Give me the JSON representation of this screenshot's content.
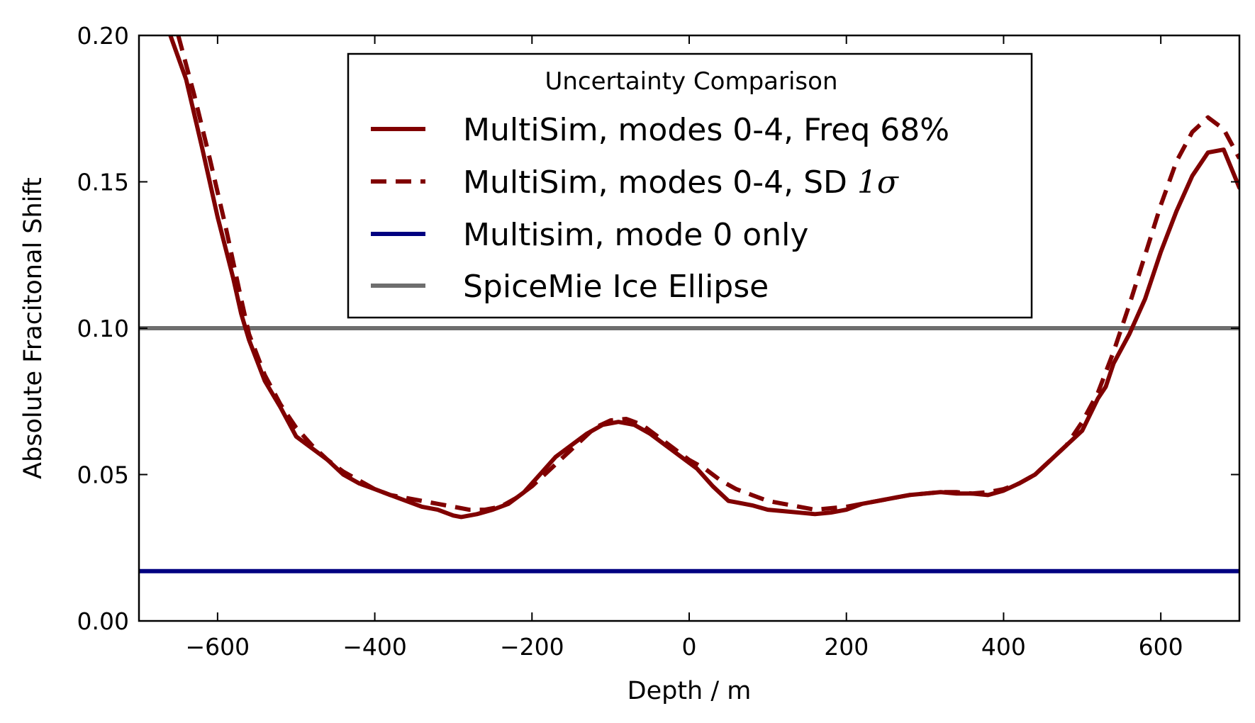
{
  "chart_data": {
    "type": "line",
    "title": "",
    "xlabel": "Depth / m",
    "ylabel": "Absolute Fracitonal Shift",
    "xlim": [
      -700,
      700
    ],
    "ylim": [
      0.0,
      0.2
    ],
    "xticks": [
      -600,
      -400,
      -200,
      0,
      200,
      400,
      600
    ],
    "xtick_labels": [
      "−600",
      "−400",
      "−200",
      "0",
      "200",
      "400",
      "600"
    ],
    "yticks": [
      0.0,
      0.05,
      0.1,
      0.15,
      0.2
    ],
    "ytick_labels": [
      "0.00",
      "0.05",
      "0.10",
      "0.15",
      "0.20"
    ],
    "grid": false,
    "legend": {
      "title": "Uncertainty Comparison",
      "placement": "upper-center"
    },
    "series": [
      {
        "name": "MultiSim, modes 0-4, Freq 68%",
        "color": "#800000",
        "style": "solid",
        "x": [
          -660,
          -640,
          -620,
          -600,
          -580,
          -570,
          -560,
          -540,
          -520,
          -500,
          -480,
          -460,
          -440,
          -420,
          -400,
          -380,
          -360,
          -340,
          -320,
          -300,
          -290,
          -270,
          -250,
          -230,
          -210,
          -190,
          -170,
          -150,
          -130,
          -110,
          -90,
          -70,
          -50,
          -30,
          -10,
          10,
          30,
          50,
          60,
          80,
          100,
          120,
          140,
          160,
          180,
          200,
          220,
          240,
          260,
          280,
          300,
          320,
          340,
          360,
          380,
          400,
          420,
          440,
          460,
          480,
          500,
          520,
          530,
          540,
          560,
          580,
          600,
          620,
          640,
          660,
          680,
          700
        ],
        "y": [
          0.2,
          0.185,
          0.162,
          0.138,
          0.117,
          0.105,
          0.096,
          0.082,
          0.073,
          0.063,
          0.059,
          0.055,
          0.05,
          0.047,
          0.045,
          0.043,
          0.041,
          0.039,
          0.038,
          0.036,
          0.0355,
          0.0365,
          0.038,
          0.04,
          0.044,
          0.05,
          0.056,
          0.06,
          0.064,
          0.067,
          0.068,
          0.067,
          0.064,
          0.06,
          0.056,
          0.052,
          0.046,
          0.041,
          0.0405,
          0.0395,
          0.038,
          0.0375,
          0.037,
          0.0365,
          0.037,
          0.038,
          0.04,
          0.041,
          0.042,
          0.043,
          0.0435,
          0.044,
          0.0435,
          0.0435,
          0.043,
          0.0445,
          0.047,
          0.05,
          0.055,
          0.06,
          0.065,
          0.076,
          0.08,
          0.088,
          0.098,
          0.11,
          0.126,
          0.14,
          0.152,
          0.16,
          0.161,
          0.148
        ]
      },
      {
        "name": "MultiSim, modes 0-4, SD 1σ",
        "color": "#800000",
        "style": "dashed",
        "x": [
          -650,
          -630,
          -610,
          -590,
          -570,
          -560,
          -540,
          -520,
          -500,
          -480,
          -460,
          -440,
          -420,
          -400,
          -380,
          -360,
          -340,
          -320,
          -300,
          -280,
          -260,
          -240,
          -220,
          -200,
          -180,
          -160,
          -140,
          -120,
          -100,
          -80,
          -60,
          -40,
          -20,
          0,
          20,
          40,
          60,
          80,
          100,
          120,
          140,
          160,
          180,
          200,
          220,
          240,
          260,
          280,
          300,
          320,
          340,
          360,
          380,
          400,
          420,
          440,
          460,
          480,
          500,
          520,
          540,
          560,
          580,
          600,
          620,
          640,
          660,
          680,
          700
        ],
        "y": [
          0.2,
          0.18,
          0.158,
          0.135,
          0.11,
          0.098,
          0.084,
          0.074,
          0.066,
          0.06,
          0.055,
          0.051,
          0.048,
          0.045,
          0.043,
          0.042,
          0.041,
          0.04,
          0.039,
          0.038,
          0.038,
          0.039,
          0.042,
          0.046,
          0.051,
          0.056,
          0.061,
          0.066,
          0.0685,
          0.069,
          0.067,
          0.063,
          0.059,
          0.055,
          0.052,
          0.048,
          0.045,
          0.043,
          0.041,
          0.04,
          0.039,
          0.038,
          0.0385,
          0.039,
          0.04,
          0.041,
          0.042,
          0.043,
          0.0435,
          0.044,
          0.044,
          0.0435,
          0.044,
          0.045,
          0.047,
          0.05,
          0.055,
          0.06,
          0.068,
          0.078,
          0.092,
          0.108,
          0.125,
          0.142,
          0.157,
          0.167,
          0.172,
          0.168,
          0.158
        ]
      },
      {
        "name": "Multisim, mode 0 only",
        "color": "#000080",
        "style": "solid",
        "x": [
          -700,
          700
        ],
        "y": [
          0.017,
          0.017
        ]
      },
      {
        "name": "SpiceMie Ice Ellipse",
        "color": "#6e6e6e",
        "style": "solid",
        "x": [
          -700,
          700
        ],
        "y": [
          0.1,
          0.1
        ]
      }
    ]
  }
}
